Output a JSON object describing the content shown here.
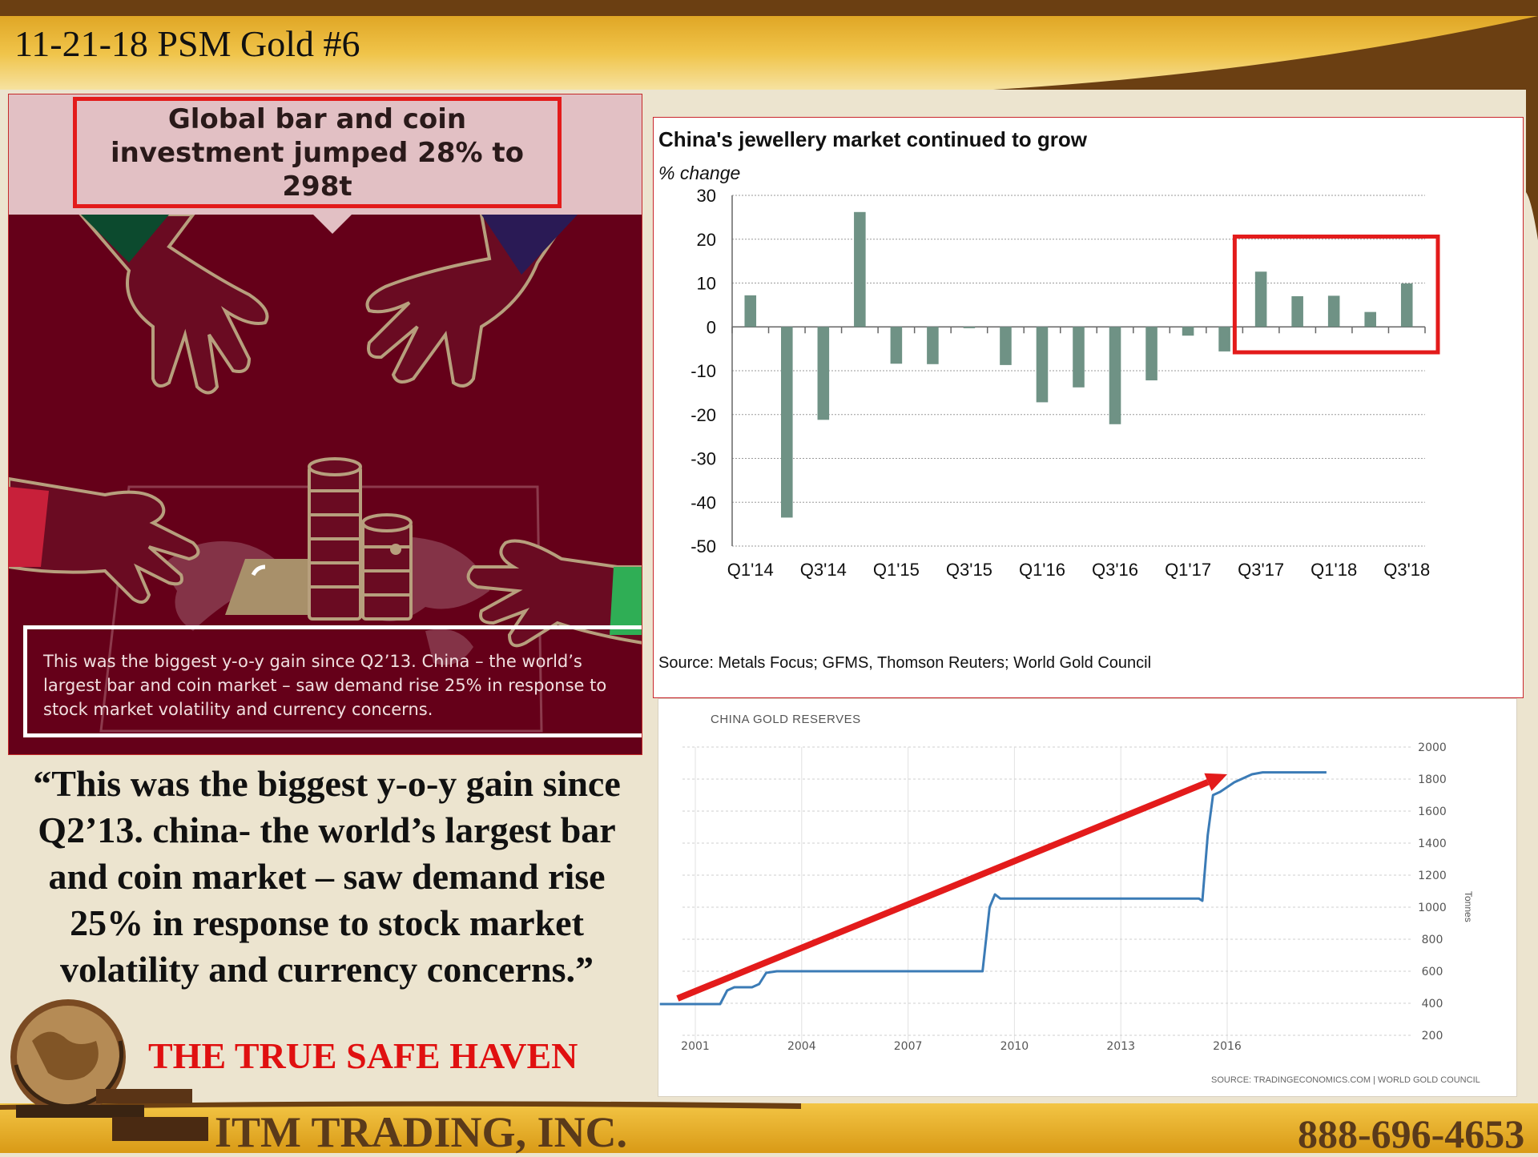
{
  "slide": {
    "title": "11-21-18 PSM Gold #6",
    "quote": "“This was the biggest y-o-y gain since Q2’13. china- the world’s largest bar and coin market – saw demand rise 25% in response to stock market volatility and currency concerns.”",
    "tagline": "THE TRUE SAFE HAVEN",
    "company": "ITM TRADING, INC.",
    "phone": "888-696-4653",
    "colors": {
      "header_gold": "#e4a91d",
      "header_brown": "#6b3f12",
      "tagline_red": "#e01010",
      "infographic_bg": "#650019"
    }
  },
  "infographic": {
    "headline": "Global bar and coin investment jumped 28% to 298t",
    "caption": "This was the biggest y-o-y gain since Q2’13. China – the world’s largest bar and coin market – saw demand rise 25% in response to stock market volatility and currency concerns.",
    "icons": [
      "hand-icon",
      "gold-bar-icon",
      "coin-stack-icon",
      "world-map-icon"
    ]
  },
  "chart_data": [
    {
      "type": "bar",
      "title": "China's jewellery market continued to grow",
      "ylabel": "% change",
      "source": "Source: Metals Focus; GFMS, Thomson Reuters; World Gold Council",
      "ylim": [
        -50,
        30
      ],
      "yticks": [
        30,
        20,
        10,
        0,
        -10,
        -20,
        -30,
        -40,
        -50
      ],
      "categories": [
        "Q1'14",
        "Q2'14",
        "Q3'14",
        "Q4'14",
        "Q1'15",
        "Q2'15",
        "Q3'15",
        "Q4'15",
        "Q1'16",
        "Q2'16",
        "Q3'16",
        "Q4'16",
        "Q1'17",
        "Q2'17",
        "Q3'17",
        "Q4'17",
        "Q1'18",
        "Q2'18",
        "Q3'18"
      ],
      "tick_labels": [
        "Q1'14",
        "Q3'14",
        "Q1'15",
        "Q3'15",
        "Q1'16",
        "Q3'16",
        "Q1'17",
        "Q3'17",
        "Q1'18",
        "Q3'18"
      ],
      "values": [
        7.2,
        -43.5,
        -21.2,
        26.2,
        -8.4,
        -8.5,
        -0.3,
        -8.7,
        -17.2,
        -13.8,
        -22.2,
        -12.2,
        -2,
        -5.6,
        12.6,
        7,
        7.1,
        3.4,
        9.9
      ],
      "bar_color": "#6f9285",
      "grid": true,
      "highlight": {
        "from": "Q3'17",
        "to": "Q3'18",
        "color": "#e31b1b"
      }
    },
    {
      "type": "line",
      "title": "CHINA GOLD RESERVES",
      "ylabel": "Tonnes",
      "source": "SOURCE: TRADINGECONOMICS.COM | WORLD GOLD COUNCIL",
      "xlim": [
        2000.0,
        2018.8
      ],
      "ylim": [
        200,
        2000
      ],
      "xticks": [
        2001,
        2004,
        2007,
        2010,
        2013,
        2016
      ],
      "yticks": [
        2000,
        1800,
        1600,
        1400,
        1200,
        1000,
        800,
        600,
        400,
        200
      ],
      "y_axis_side": "right",
      "line_color": "#3b7bb6",
      "grid": true,
      "points": [
        [
          2000.0,
          395
        ],
        [
          2001.5,
          395
        ],
        [
          2001.7,
          395
        ],
        [
          2001.9,
          480
        ],
        [
          2002.1,
          500
        ],
        [
          2002.6,
          500
        ],
        [
          2002.8,
          520
        ],
        [
          2003.0,
          590
        ],
        [
          2003.3,
          600
        ],
        [
          2009.0,
          600
        ],
        [
          2009.1,
          600
        ],
        [
          2009.3,
          1000
        ],
        [
          2009.45,
          1080
        ],
        [
          2009.6,
          1054
        ],
        [
          2015.2,
          1054
        ],
        [
          2015.3,
          1040
        ],
        [
          2015.45,
          1450
        ],
        [
          2015.6,
          1700
        ],
        [
          2015.8,
          1720
        ],
        [
          2016.2,
          1780
        ],
        [
          2016.7,
          1830
        ],
        [
          2017.0,
          1842
        ],
        [
          2018.0,
          1842
        ],
        [
          2018.8,
          1842
        ]
      ],
      "annotation": {
        "type": "arrow",
        "color": "#e31b1b",
        "from": [
          2000.5,
          430
        ],
        "to": [
          2016.0,
          1830
        ]
      }
    }
  ]
}
